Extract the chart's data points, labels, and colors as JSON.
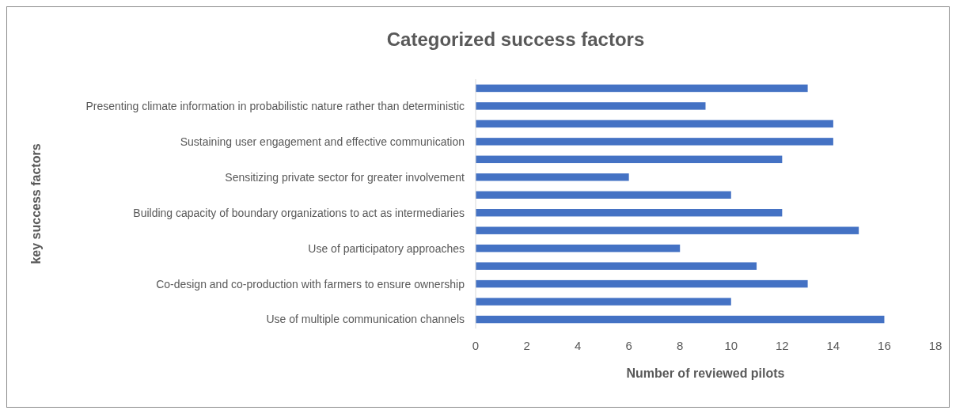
{
  "chart_data": {
    "type": "bar",
    "orientation": "horizontal",
    "title": "Categorized success factors",
    "xlabel": "Number of reviewed pilots",
    "ylabel": "key success factors",
    "categories": [
      null,
      "Presenting climate information in probabilistic nature rather than deterministic",
      null,
      "Sustaining user engagement and effective communication",
      null,
      "Sensitizing private sector for greater involvement",
      null,
      "Building capacity of boundary organizations to act as intermediaries",
      null,
      "Use of participatory approaches",
      null,
      "Co-design and co-production with farmers to ensure ownership",
      null,
      "Use of multiple communication channels"
    ],
    "values": [
      13,
      9,
      14,
      14,
      12,
      6,
      10,
      12,
      15,
      8,
      11,
      13,
      10,
      16
    ],
    "color": "#4472c4",
    "xlim": [
      0,
      18
    ],
    "xticks": [
      0,
      2,
      4,
      6,
      8,
      10,
      12,
      14,
      16,
      18
    ]
  }
}
